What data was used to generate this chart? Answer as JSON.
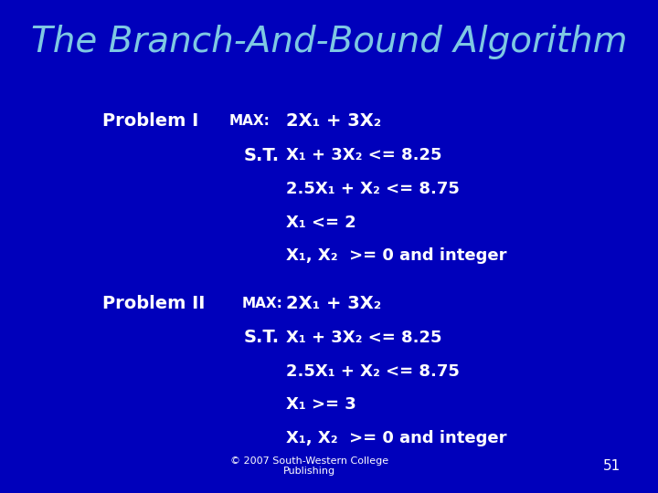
{
  "title": "The Branch-And-Bound Algorithm",
  "title_color": "#7ec8e3",
  "title_fontsize": 28,
  "background_color": "#0000bb",
  "text_color": "#ffffff",
  "footer_text": "© 2007 South-Western College\nPublishing",
  "page_number": "51",
  "problem1_label": "Problem I",
  "problem2_label": "Problem II",
  "max_label": "MAX:",
  "st_label": "S.T.",
  "p1_obj": "2X₁ + 3X₂",
  "p1_c1": "X₁ + 3X₂ <= 8.25",
  "p1_c2": "2.5X₁ + X₂ <= 8.75",
  "p1_c3": "X₁ <= 2",
  "p1_c4": "X₁, X₂  >= 0 and integer",
  "p2_obj": "2X₁ + 3X₂",
  "p2_c1": "X₁ + 3X₂ <= 8.25",
  "p2_c2": "2.5X₁ + X₂ <= 8.75",
  "p2_c3": "X₁ >= 3",
  "p2_c4": "X₁, X₂  >= 0 and integer",
  "prob_fontsize": 14,
  "max_fontsize": 11,
  "constraint_fontsize": 13
}
